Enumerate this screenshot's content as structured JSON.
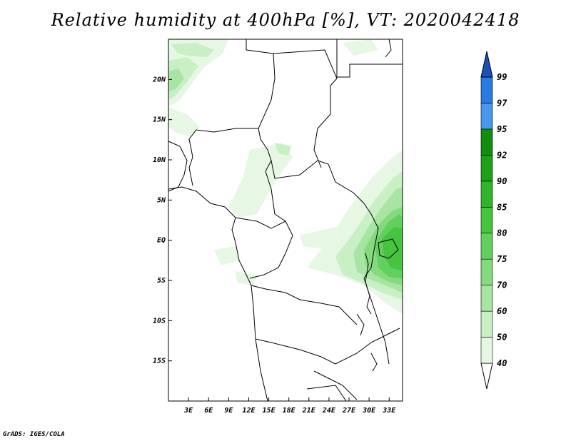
{
  "title": "Relative humidity at 400hPa [%], VT: 2020042418",
  "credit": "GrADS: IGES/COLA",
  "map": {
    "lon_range": [
      0,
      35
    ],
    "lat_range": [
      -20,
      25
    ],
    "lat_ticks": [
      {
        "value": 20,
        "label": "20N"
      },
      {
        "value": 15,
        "label": "15N"
      },
      {
        "value": 10,
        "label": "10N"
      },
      {
        "value": 5,
        "label": "5N"
      },
      {
        "value": 0,
        "label": "EQ"
      },
      {
        "value": -5,
        "label": "5S"
      },
      {
        "value": -10,
        "label": "10S"
      },
      {
        "value": -15,
        "label": "15S"
      }
    ],
    "lon_ticks": [
      {
        "value": 3,
        "label": "3E"
      },
      {
        "value": 6,
        "label": "6E"
      },
      {
        "value": 9,
        "label": "9E"
      },
      {
        "value": 12,
        "label": "12E"
      },
      {
        "value": 15,
        "label": "15E"
      },
      {
        "value": 18,
        "label": "18E"
      },
      {
        "value": 21,
        "label": "21E"
      },
      {
        "value": 24,
        "label": "24E"
      },
      {
        "value": 27,
        "label": "27E"
      },
      {
        "value": 30,
        "label": "30E"
      },
      {
        "value": 33,
        "label": "33E"
      }
    ]
  },
  "colorbar": {
    "levels": [
      {
        "label": "40",
        "color": "#e6f7e3"
      },
      {
        "label": "50",
        "color": "#c9efc4"
      },
      {
        "label": "60",
        "color": "#a8e5a2"
      },
      {
        "label": "70",
        "color": "#85da7e"
      },
      {
        "label": "75",
        "color": "#63cf5e"
      },
      {
        "label": "80",
        "color": "#46c43f"
      },
      {
        "label": "85",
        "color": "#2fb52a"
      },
      {
        "label": "90",
        "color": "#1fa01a"
      },
      {
        "label": "92",
        "color": "#138d10"
      },
      {
        "label": "95",
        "color": "#4a96ea"
      },
      {
        "label": "97",
        "color": "#2a7ae0"
      },
      {
        "label": "99",
        "color": "#1a5fcf"
      }
    ],
    "low_color": "#ffffff",
    "high_color": "#1a50b8"
  }
}
